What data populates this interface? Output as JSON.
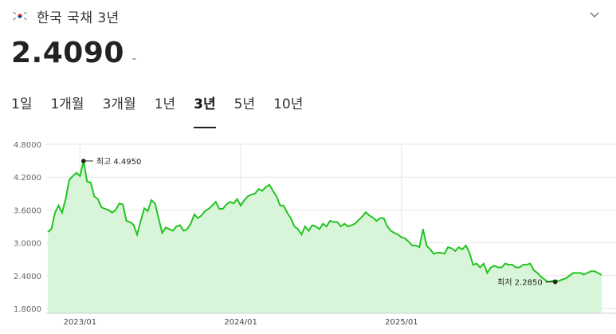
{
  "header": {
    "flag_icon": "korea-flag-icon",
    "title": "한국 국채 3년",
    "expand_icon": "chevron-down-icon"
  },
  "quote": {
    "price": "2.4090",
    "change": "-"
  },
  "tabs": [
    {
      "label": "1일",
      "active": false
    },
    {
      "label": "1개월",
      "active": false
    },
    {
      "label": "3개월",
      "active": false
    },
    {
      "label": "1년",
      "active": false
    },
    {
      "label": "3년",
      "active": true
    },
    {
      "label": "5년",
      "active": false
    },
    {
      "label": "10년",
      "active": false
    }
  ],
  "colors": {
    "line": "#22c322",
    "fill": "#d9f5d9",
    "grid": "#e6e6e6"
  },
  "chart_data": {
    "type": "area",
    "x_start": "2022-04",
    "ylim": [
      1.8,
      4.8
    ],
    "yticks": [
      "4.8000",
      "4.2000",
      "3.6000",
      "3.0000",
      "2.4000",
      "1.8000"
    ],
    "xticks": [
      {
        "label": "2023/01",
        "index": 9
      },
      {
        "label": "2024/01",
        "index": 54
      },
      {
        "label": "2025/01",
        "index": 99
      }
    ],
    "values": [
      3.2,
      3.25,
      3.55,
      3.68,
      3.55,
      3.8,
      4.15,
      4.22,
      4.28,
      4.22,
      4.495,
      4.12,
      4.1,
      3.85,
      3.8,
      3.65,
      3.62,
      3.6,
      3.55,
      3.6,
      3.72,
      3.7,
      3.4,
      3.38,
      3.33,
      3.15,
      3.4,
      3.63,
      3.58,
      3.78,
      3.72,
      3.45,
      3.18,
      3.28,
      3.25,
      3.22,
      3.3,
      3.32,
      3.22,
      3.25,
      3.35,
      3.52,
      3.45,
      3.5,
      3.58,
      3.62,
      3.68,
      3.75,
      3.62,
      3.62,
      3.7,
      3.75,
      3.72,
      3.8,
      3.68,
      3.78,
      3.85,
      3.88,
      3.9,
      3.98,
      3.95,
      4.02,
      4.06,
      3.95,
      3.85,
      3.68,
      3.68,
      3.55,
      3.45,
      3.3,
      3.25,
      3.15,
      3.3,
      3.22,
      3.32,
      3.3,
      3.25,
      3.35,
      3.3,
      3.4,
      3.38,
      3.38,
      3.3,
      3.35,
      3.3,
      3.32,
      3.35,
      3.42,
      3.48,
      3.56,
      3.5,
      3.46,
      3.4,
      3.45,
      3.45,
      3.3,
      3.22,
      3.18,
      3.15,
      3.1,
      3.08,
      3.02,
      2.95,
      2.95,
      2.92,
      3.25,
      2.95,
      2.88,
      2.8,
      2.82,
      2.82,
      2.8,
      2.92,
      2.9,
      2.85,
      2.92,
      2.88,
      2.95,
      2.82,
      2.6,
      2.62,
      2.55,
      2.62,
      2.45,
      2.55,
      2.58,
      2.55,
      2.55,
      2.62,
      2.6,
      2.6,
      2.55,
      2.55,
      2.6,
      2.6,
      2.62,
      2.5,
      2.45,
      2.38,
      2.33,
      2.285,
      2.3,
      2.32,
      2.3,
      2.33,
      2.35,
      2.4,
      2.45,
      2.45,
      2.45,
      2.42,
      2.45,
      2.48,
      2.48,
      2.45,
      2.409
    ],
    "annotations": [
      {
        "label": "최고 4.4950",
        "index": 10,
        "value": 4.495,
        "side": "right"
      },
      {
        "label": "최저 2.2850",
        "index": 142,
        "value": 2.285,
        "side": "left"
      }
    ]
  }
}
